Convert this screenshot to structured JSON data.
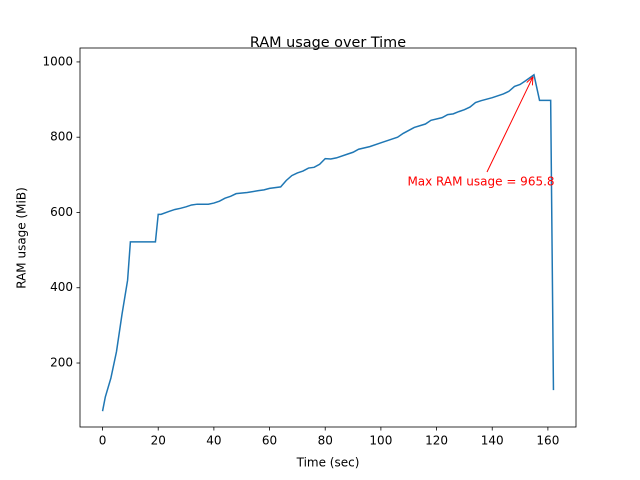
{
  "chart_data": {
    "type": "line",
    "title": "RAM usage over Time",
    "x_label": "Time (sec)",
    "y_label": "RAM usage (MiB)",
    "annotation": "Max RAM usage = 965.8",
    "annotation_color": "#ff0000",
    "series": [
      {
        "name": "RAM usage",
        "color": "#1f77b4",
        "x": [
          0,
          1,
          3,
          5,
          7,
          9,
          10,
          19,
          20,
          21,
          24,
          26,
          28,
          30,
          32,
          34,
          38,
          40,
          42,
          44,
          46,
          48,
          52,
          56,
          58,
          60,
          64,
          66,
          68,
          70,
          72,
          74,
          76,
          78,
          80,
          82,
          84,
          88,
          90,
          92,
          96,
          100,
          104,
          106,
          108,
          110,
          112,
          116,
          118,
          122,
          124,
          126,
          128,
          130,
          132,
          134,
          136,
          140,
          144,
          146,
          148,
          150,
          152,
          155,
          157,
          161,
          162
        ],
        "values": [
          72,
          110,
          160,
          230,
          330,
          420,
          522,
          522,
          595,
          595,
          603,
          608,
          611,
          615,
          620,
          622,
          622,
          625,
          630,
          638,
          643,
          650,
          653,
          658,
          660,
          664,
          668,
          685,
          698,
          705,
          710,
          718,
          720,
          728,
          743,
          742,
          745,
          755,
          760,
          768,
          775,
          785,
          795,
          800,
          810,
          818,
          826,
          835,
          845,
          852,
          860,
          862,
          868,
          873,
          880,
          892,
          897,
          905,
          915,
          922,
          935,
          940,
          950,
          965.8,
          898,
          898,
          128
        ]
      }
    ],
    "xlim": [
      -8.1,
      170.1
    ],
    "ylim": [
      30,
      1037
    ],
    "xticks": [
      0,
      20,
      40,
      60,
      80,
      100,
      120,
      140,
      160
    ],
    "yticks": [
      200,
      400,
      600,
      800,
      1000
    ]
  }
}
